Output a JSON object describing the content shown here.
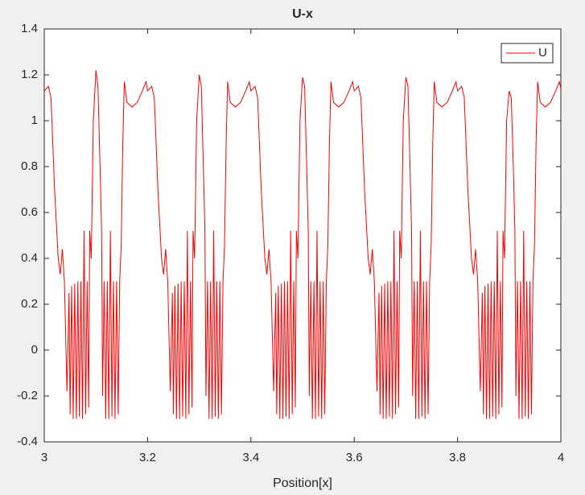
{
  "chart_data": {
    "type": "line",
    "title": "U-x",
    "xlabel": "Position[x]",
    "xlim": [
      3,
      4
    ],
    "xticks": [
      3,
      3.2,
      3.4,
      3.6,
      3.8,
      4
    ],
    "ylim": [
      -0.4,
      1.4
    ],
    "yticks": [
      -0.4,
      -0.2,
      0,
      0.2,
      0.4,
      0.6,
      0.8,
      1,
      1.2,
      1.4
    ],
    "grid": false,
    "legend": "top-right",
    "x": [
      3,
      3.008,
      3.013,
      3.02,
      3.027,
      3.031,
      3.035,
      3.039,
      3.044,
      3.048,
      3.05,
      3.053,
      3.056,
      3.059,
      3.062,
      3.065,
      3.068,
      3.071,
      3.074,
      3.077,
      3.08,
      3.083,
      3.086,
      3.088,
      3.091,
      3.095,
      3.1,
      3.104,
      3.108,
      3.111,
      3.113,
      3.116,
      3.119,
      3.122,
      3.125,
      3.128,
      3.131,
      3.134,
      3.137,
      3.14,
      3.143,
      3.146,
      3.149,
      3.152,
      3.155,
      3.16,
      3.17,
      3.18,
      3.19,
      3.197,
      3.2,
      3.208,
      3.213,
      3.22,
      3.227,
      3.231,
      3.235,
      3.239,
      3.244,
      3.248,
      3.25,
      3.253,
      3.256,
      3.259,
      3.262,
      3.265,
      3.268,
      3.271,
      3.274,
      3.277,
      3.28,
      3.283,
      3.286,
      3.288,
      3.291,
      3.295,
      3.3,
      3.304,
      3.308,
      3.311,
      3.313,
      3.316,
      3.319,
      3.322,
      3.325,
      3.328,
      3.331,
      3.334,
      3.337,
      3.34,
      3.343,
      3.346,
      3.349,
      3.352,
      3.355,
      3.36,
      3.37,
      3.38,
      3.39,
      3.397,
      3.4,
      3.408,
      3.413,
      3.42,
      3.427,
      3.431,
      3.435,
      3.439,
      3.444,
      3.448,
      3.45,
      3.453,
      3.456,
      3.459,
      3.462,
      3.465,
      3.468,
      3.471,
      3.474,
      3.477,
      3.48,
      3.483,
      3.486,
      3.488,
      3.491,
      3.495,
      3.5,
      3.504,
      3.508,
      3.511,
      3.513,
      3.516,
      3.519,
      3.522,
      3.525,
      3.528,
      3.531,
      3.534,
      3.537,
      3.54,
      3.543,
      3.546,
      3.549,
      3.552,
      3.555,
      3.56,
      3.57,
      3.58,
      3.59,
      3.597,
      3.6,
      3.608,
      3.613,
      3.62,
      3.627,
      3.631,
      3.635,
      3.639,
      3.644,
      3.648,
      3.65,
      3.653,
      3.656,
      3.659,
      3.662,
      3.665,
      3.668,
      3.671,
      3.674,
      3.677,
      3.68,
      3.683,
      3.686,
      3.688,
      3.691,
      3.695,
      3.7,
      3.704,
      3.708,
      3.711,
      3.713,
      3.716,
      3.719,
      3.722,
      3.725,
      3.728,
      3.731,
      3.734,
      3.737,
      3.74,
      3.743,
      3.746,
      3.749,
      3.752,
      3.755,
      3.76,
      3.77,
      3.78,
      3.79,
      3.797,
      3.8,
      3.808,
      3.813,
      3.82,
      3.827,
      3.831,
      3.835,
      3.839,
      3.844,
      3.848,
      3.85,
      3.853,
      3.856,
      3.859,
      3.862,
      3.865,
      3.868,
      3.871,
      3.874,
      3.877,
      3.88,
      3.883,
      3.886,
      3.888,
      3.891,
      3.895,
      3.9,
      3.904,
      3.908,
      3.911,
      3.913,
      3.916,
      3.919,
      3.922,
      3.925,
      3.928,
      3.931,
      3.934,
      3.937,
      3.94,
      3.943,
      3.946,
      3.949,
      3.952,
      3.955,
      3.96,
      3.97,
      3.98,
      3.99,
      3.997,
      4
    ],
    "series": [
      {
        "name": "U",
        "color": "#ff0000",
        "values": [
          1.13,
          1.15,
          1.1,
          0.7,
          0.4,
          0.33,
          0.44,
          0.3,
          -0.18,
          0.25,
          -0.28,
          0.28,
          -0.3,
          0.29,
          -0.3,
          0.3,
          -0.29,
          0.3,
          -0.3,
          0.52,
          -0.28,
          0.3,
          -0.25,
          0.52,
          0.4,
          1,
          1.22,
          1.15,
          0.8,
          0.52,
          -0.2,
          0.3,
          -0.3,
          0.3,
          -0.3,
          0.52,
          -0.29,
          0.3,
          -0.3,
          0.3,
          -0.28,
          0.3,
          0.46,
          0.9,
          1.17,
          1.08,
          1.06,
          1.08,
          1.13,
          1.17,
          1.13,
          1.15,
          1.1,
          0.7,
          0.4,
          0.33,
          0.44,
          0.3,
          -0.18,
          0.25,
          -0.28,
          0.28,
          -0.3,
          0.29,
          -0.3,
          0.3,
          -0.29,
          0.3,
          -0.3,
          0.52,
          -0.28,
          0.3,
          -0.25,
          0.52,
          0.4,
          1,
          1.2,
          1.15,
          0.8,
          0.52,
          -0.2,
          0.3,
          -0.3,
          0.3,
          -0.3,
          0.52,
          -0.29,
          0.3,
          -0.3,
          0.3,
          -0.28,
          0.3,
          0.46,
          0.9,
          1.17,
          1.08,
          1.06,
          1.08,
          1.13,
          1.17,
          1.13,
          1.15,
          1.1,
          0.7,
          0.4,
          0.33,
          0.44,
          0.3,
          -0.18,
          0.25,
          -0.28,
          0.28,
          -0.3,
          0.29,
          -0.3,
          0.3,
          -0.29,
          0.3,
          -0.3,
          0.52,
          -0.28,
          0.3,
          -0.25,
          0.52,
          0.4,
          1,
          1.19,
          1.15,
          0.8,
          0.52,
          -0.2,
          0.3,
          -0.3,
          0.3,
          -0.3,
          0.52,
          -0.29,
          0.3,
          -0.3,
          0.3,
          -0.28,
          0.3,
          0.46,
          0.9,
          1.17,
          1.08,
          1.06,
          1.08,
          1.13,
          1.17,
          1.13,
          1.15,
          1.1,
          0.7,
          0.4,
          0.33,
          0.44,
          0.3,
          -0.18,
          0.25,
          -0.28,
          0.28,
          -0.3,
          0.29,
          -0.3,
          0.3,
          -0.29,
          0.3,
          -0.3,
          0.52,
          -0.28,
          0.3,
          -0.25,
          0.52,
          0.4,
          1,
          1.19,
          1.15,
          0.8,
          0.52,
          -0.2,
          0.3,
          -0.3,
          0.3,
          -0.3,
          0.52,
          -0.29,
          0.3,
          -0.3,
          0.3,
          -0.28,
          0.3,
          0.46,
          0.9,
          1.17,
          1.08,
          1.06,
          1.08,
          1.13,
          1.17,
          1.13,
          1.15,
          1.1,
          0.7,
          0.4,
          0.33,
          0.44,
          0.3,
          -0.18,
          0.25,
          -0.28,
          0.28,
          -0.3,
          0.29,
          -0.3,
          0.3,
          -0.29,
          0.3,
          -0.3,
          0.52,
          -0.28,
          0.3,
          -0.25,
          0.52,
          0.4,
          1,
          1.13,
          1.1,
          0.8,
          0.52,
          -0.2,
          0.3,
          -0.3,
          0.3,
          -0.3,
          0.52,
          -0.29,
          0.3,
          -0.3,
          0.3,
          -0.28,
          0.3,
          0.46,
          0.9,
          1.17,
          1.08,
          1.06,
          1.08,
          1.13,
          1.17,
          1.14
        ]
      }
    ]
  }
}
